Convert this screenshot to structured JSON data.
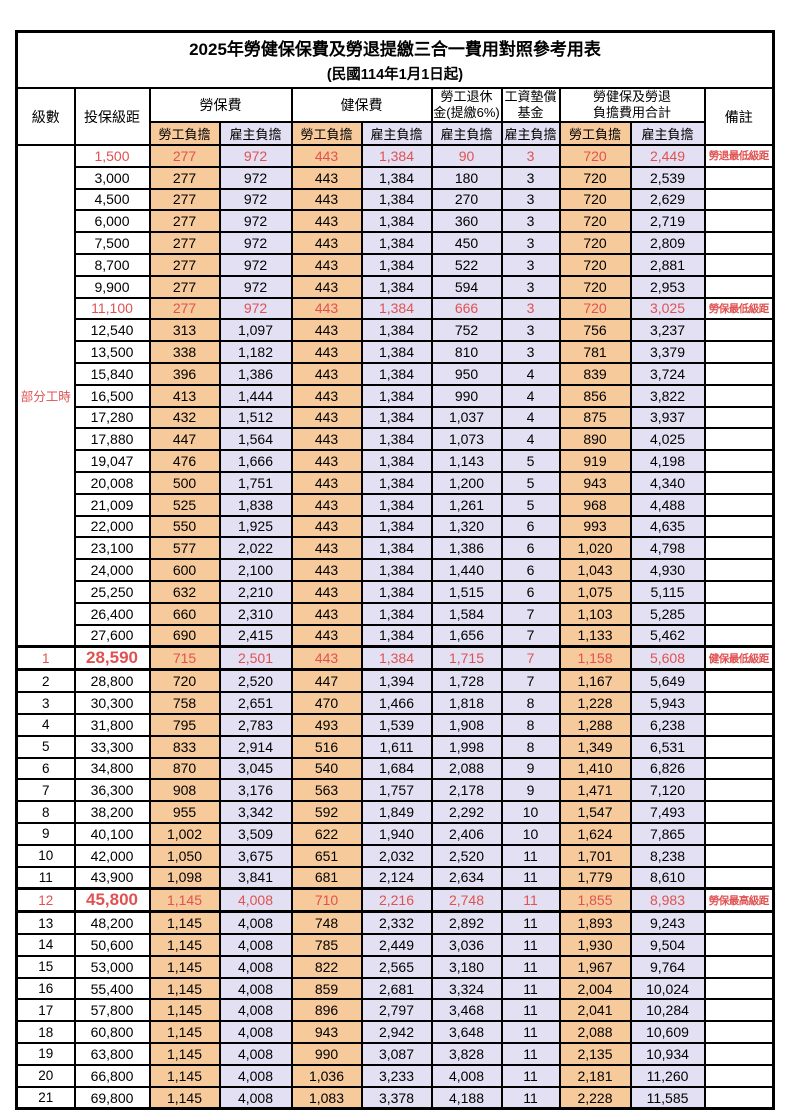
{
  "page": {
    "title": "2025年勞健保保費及勞退提繳三合一費用對照參考用表",
    "subtitle": "(民國114年1月1日起)"
  },
  "colors": {
    "employee_col_bg": "#F7CA9C",
    "employer_col_bg": "#E2E0F2",
    "highlight_text": "#E05252",
    "border": "#000000"
  },
  "table": {
    "columns": {
      "level": "級數",
      "bracket": "投保級距",
      "labor_ins": "勞保費",
      "health_ins": "健保費",
      "pension_line1": "勞工退休",
      "pension_line2": "金(提繳6%)",
      "wage_fund_line1": "工資墊償",
      "wage_fund_line2": "基金",
      "total_line1": "勞健保及勞退",
      "total_line2": "負擔費用合計",
      "note": "備註",
      "employee": "勞工負擔",
      "employer": "雇主負擔"
    },
    "part_time_label": "部分工時",
    "part_time_row_count": 23,
    "rows": [
      {
        "level": "",
        "bracket": "1,500",
        "v": [
          "277",
          "972",
          "443",
          "1,384",
          "90",
          "3",
          "720",
          "2,449"
        ],
        "note": "勞退最低級距",
        "red": true,
        "big": false,
        "thick": false
      },
      {
        "level": "",
        "bracket": "3,000",
        "v": [
          "277",
          "972",
          "443",
          "1,384",
          "180",
          "3",
          "720",
          "2,539"
        ],
        "note": "",
        "red": false,
        "big": false,
        "thick": false
      },
      {
        "level": "",
        "bracket": "4,500",
        "v": [
          "277",
          "972",
          "443",
          "1,384",
          "270",
          "3",
          "720",
          "2,629"
        ],
        "note": "",
        "red": false,
        "big": false,
        "thick": false
      },
      {
        "level": "",
        "bracket": "6,000",
        "v": [
          "277",
          "972",
          "443",
          "1,384",
          "360",
          "3",
          "720",
          "2,719"
        ],
        "note": "",
        "red": false,
        "big": false,
        "thick": false
      },
      {
        "level": "",
        "bracket": "7,500",
        "v": [
          "277",
          "972",
          "443",
          "1,384",
          "450",
          "3",
          "720",
          "2,809"
        ],
        "note": "",
        "red": false,
        "big": false,
        "thick": false
      },
      {
        "level": "",
        "bracket": "8,700",
        "v": [
          "277",
          "972",
          "443",
          "1,384",
          "522",
          "3",
          "720",
          "2,881"
        ],
        "note": "",
        "red": false,
        "big": false,
        "thick": false
      },
      {
        "level": "",
        "bracket": "9,900",
        "v": [
          "277",
          "972",
          "443",
          "1,384",
          "594",
          "3",
          "720",
          "2,953"
        ],
        "note": "",
        "red": false,
        "big": false,
        "thick": false
      },
      {
        "level": "",
        "bracket": "11,100",
        "v": [
          "277",
          "972",
          "443",
          "1,384",
          "666",
          "3",
          "720",
          "3,025"
        ],
        "note": "勞保最低級距",
        "red": true,
        "big": false,
        "thick": false
      },
      {
        "level": "",
        "bracket": "12,540",
        "v": [
          "313",
          "1,097",
          "443",
          "1,384",
          "752",
          "3",
          "756",
          "3,237"
        ],
        "note": "",
        "red": false,
        "big": false,
        "thick": false
      },
      {
        "level": "",
        "bracket": "13,500",
        "v": [
          "338",
          "1,182",
          "443",
          "1,384",
          "810",
          "3",
          "781",
          "3,379"
        ],
        "note": "",
        "red": false,
        "big": false,
        "thick": false
      },
      {
        "level": "",
        "bracket": "15,840",
        "v": [
          "396",
          "1,386",
          "443",
          "1,384",
          "950",
          "4",
          "839",
          "3,724"
        ],
        "note": "",
        "red": false,
        "big": false,
        "thick": false
      },
      {
        "level": "",
        "bracket": "16,500",
        "v": [
          "413",
          "1,444",
          "443",
          "1,384",
          "990",
          "4",
          "856",
          "3,822"
        ],
        "note": "",
        "red": false,
        "big": false,
        "thick": false
      },
      {
        "level": "",
        "bracket": "17,280",
        "v": [
          "432",
          "1,512",
          "443",
          "1,384",
          "1,037",
          "4",
          "875",
          "3,937"
        ],
        "note": "",
        "red": false,
        "big": false,
        "thick": false
      },
      {
        "level": "",
        "bracket": "17,880",
        "v": [
          "447",
          "1,564",
          "443",
          "1,384",
          "1,073",
          "4",
          "890",
          "4,025"
        ],
        "note": "",
        "red": false,
        "big": false,
        "thick": false
      },
      {
        "level": "",
        "bracket": "19,047",
        "v": [
          "476",
          "1,666",
          "443",
          "1,384",
          "1,143",
          "5",
          "919",
          "4,198"
        ],
        "note": "",
        "red": false,
        "big": false,
        "thick": false
      },
      {
        "level": "",
        "bracket": "20,008",
        "v": [
          "500",
          "1,751",
          "443",
          "1,384",
          "1,200",
          "5",
          "943",
          "4,340"
        ],
        "note": "",
        "red": false,
        "big": false,
        "thick": false
      },
      {
        "level": "",
        "bracket": "21,009",
        "v": [
          "525",
          "1,838",
          "443",
          "1,384",
          "1,261",
          "5",
          "968",
          "4,488"
        ],
        "note": "",
        "red": false,
        "big": false,
        "thick": false
      },
      {
        "level": "",
        "bracket": "22,000",
        "v": [
          "550",
          "1,925",
          "443",
          "1,384",
          "1,320",
          "6",
          "993",
          "4,635"
        ],
        "note": "",
        "red": false,
        "big": false,
        "thick": false
      },
      {
        "level": "",
        "bracket": "23,100",
        "v": [
          "577",
          "2,022",
          "443",
          "1,384",
          "1,386",
          "6",
          "1,020",
          "4,798"
        ],
        "note": "",
        "red": false,
        "big": false,
        "thick": false
      },
      {
        "level": "",
        "bracket": "24,000",
        "v": [
          "600",
          "2,100",
          "443",
          "1,384",
          "1,440",
          "6",
          "1,043",
          "4,930"
        ],
        "note": "",
        "red": false,
        "big": false,
        "thick": false
      },
      {
        "level": "",
        "bracket": "25,250",
        "v": [
          "632",
          "2,210",
          "443",
          "1,384",
          "1,515",
          "6",
          "1,075",
          "5,115"
        ],
        "note": "",
        "red": false,
        "big": false,
        "thick": false
      },
      {
        "level": "",
        "bracket": "26,400",
        "v": [
          "660",
          "2,310",
          "443",
          "1,384",
          "1,584",
          "7",
          "1,103",
          "5,285"
        ],
        "note": "",
        "red": false,
        "big": false,
        "thick": false
      },
      {
        "level": "",
        "bracket": "27,600",
        "v": [
          "690",
          "2,415",
          "443",
          "1,384",
          "1,656",
          "7",
          "1,133",
          "5,462"
        ],
        "note": "",
        "red": false,
        "big": false,
        "thick": false
      },
      {
        "level": "1",
        "bracket": "28,590",
        "v": [
          "715",
          "2,501",
          "443",
          "1,384",
          "1,715",
          "7",
          "1,158",
          "5,608"
        ],
        "note": "健保最低級距",
        "red": true,
        "big": true,
        "thick": true
      },
      {
        "level": "2",
        "bracket": "28,800",
        "v": [
          "720",
          "2,520",
          "447",
          "1,394",
          "1,728",
          "7",
          "1,167",
          "5,649"
        ],
        "note": "",
        "red": false,
        "big": false,
        "thick": false
      },
      {
        "level": "3",
        "bracket": "30,300",
        "v": [
          "758",
          "2,651",
          "470",
          "1,466",
          "1,818",
          "8",
          "1,228",
          "5,943"
        ],
        "note": "",
        "red": false,
        "big": false,
        "thick": false
      },
      {
        "level": "4",
        "bracket": "31,800",
        "v": [
          "795",
          "2,783",
          "493",
          "1,539",
          "1,908",
          "8",
          "1,288",
          "6,238"
        ],
        "note": "",
        "red": false,
        "big": false,
        "thick": false
      },
      {
        "level": "5",
        "bracket": "33,300",
        "v": [
          "833",
          "2,914",
          "516",
          "1,611",
          "1,998",
          "8",
          "1,349",
          "6,531"
        ],
        "note": "",
        "red": false,
        "big": false,
        "thick": false
      },
      {
        "level": "6",
        "bracket": "34,800",
        "v": [
          "870",
          "3,045",
          "540",
          "1,684",
          "2,088",
          "9",
          "1,410",
          "6,826"
        ],
        "note": "",
        "red": false,
        "big": false,
        "thick": false
      },
      {
        "level": "7",
        "bracket": "36,300",
        "v": [
          "908",
          "3,176",
          "563",
          "1,757",
          "2,178",
          "9",
          "1,471",
          "7,120"
        ],
        "note": "",
        "red": false,
        "big": false,
        "thick": false
      },
      {
        "level": "8",
        "bracket": "38,200",
        "v": [
          "955",
          "3,342",
          "592",
          "1,849",
          "2,292",
          "10",
          "1,547",
          "7,493"
        ],
        "note": "",
        "red": false,
        "big": false,
        "thick": false
      },
      {
        "level": "9",
        "bracket": "40,100",
        "v": [
          "1,002",
          "3,509",
          "622",
          "1,940",
          "2,406",
          "10",
          "1,624",
          "7,865"
        ],
        "note": "",
        "red": false,
        "big": false,
        "thick": false
      },
      {
        "level": "10",
        "bracket": "42,000",
        "v": [
          "1,050",
          "3,675",
          "651",
          "2,032",
          "2,520",
          "11",
          "1,701",
          "8,238"
        ],
        "note": "",
        "red": false,
        "big": false,
        "thick": false
      },
      {
        "level": "11",
        "bracket": "43,900",
        "v": [
          "1,098",
          "3,841",
          "681",
          "2,124",
          "2,634",
          "11",
          "1,779",
          "8,610"
        ],
        "note": "",
        "red": false,
        "big": false,
        "thick": false
      },
      {
        "level": "12",
        "bracket": "45,800",
        "v": [
          "1,145",
          "4,008",
          "710",
          "2,216",
          "2,748",
          "11",
          "1,855",
          "8,983"
        ],
        "note": "勞保最高級距",
        "red": true,
        "big": true,
        "thick": true
      },
      {
        "level": "13",
        "bracket": "48,200",
        "v": [
          "1,145",
          "4,008",
          "748",
          "2,332",
          "2,892",
          "11",
          "1,893",
          "9,243"
        ],
        "note": "",
        "red": false,
        "big": false,
        "thick": false
      },
      {
        "level": "14",
        "bracket": "50,600",
        "v": [
          "1,145",
          "4,008",
          "785",
          "2,449",
          "3,036",
          "11",
          "1,930",
          "9,504"
        ],
        "note": "",
        "red": false,
        "big": false,
        "thick": false
      },
      {
        "level": "15",
        "bracket": "53,000",
        "v": [
          "1,145",
          "4,008",
          "822",
          "2,565",
          "3,180",
          "11",
          "1,967",
          "9,764"
        ],
        "note": "",
        "red": false,
        "big": false,
        "thick": false
      },
      {
        "level": "16",
        "bracket": "55,400",
        "v": [
          "1,145",
          "4,008",
          "859",
          "2,681",
          "3,324",
          "11",
          "2,004",
          "10,024"
        ],
        "note": "",
        "red": false,
        "big": false,
        "thick": false
      },
      {
        "level": "17",
        "bracket": "57,800",
        "v": [
          "1,145",
          "4,008",
          "896",
          "2,797",
          "3,468",
          "11",
          "2,041",
          "10,284"
        ],
        "note": "",
        "red": false,
        "big": false,
        "thick": false
      },
      {
        "level": "18",
        "bracket": "60,800",
        "v": [
          "1,145",
          "4,008",
          "943",
          "2,942",
          "3,648",
          "11",
          "2,088",
          "10,609"
        ],
        "note": "",
        "red": false,
        "big": false,
        "thick": false
      },
      {
        "level": "19",
        "bracket": "63,800",
        "v": [
          "1,145",
          "4,008",
          "990",
          "3,087",
          "3,828",
          "11",
          "2,135",
          "10,934"
        ],
        "note": "",
        "red": false,
        "big": false,
        "thick": false
      },
      {
        "level": "20",
        "bracket": "66,800",
        "v": [
          "1,145",
          "4,008",
          "1,036",
          "3,233",
          "4,008",
          "11",
          "2,181",
          "11,260"
        ],
        "note": "",
        "red": false,
        "big": false,
        "thick": false
      },
      {
        "level": "21",
        "bracket": "69,800",
        "v": [
          "1,145",
          "4,008",
          "1,083",
          "3,378",
          "4,188",
          "11",
          "2,228",
          "11,585"
        ],
        "note": "",
        "red": false,
        "big": false,
        "thick": false
      }
    ]
  }
}
